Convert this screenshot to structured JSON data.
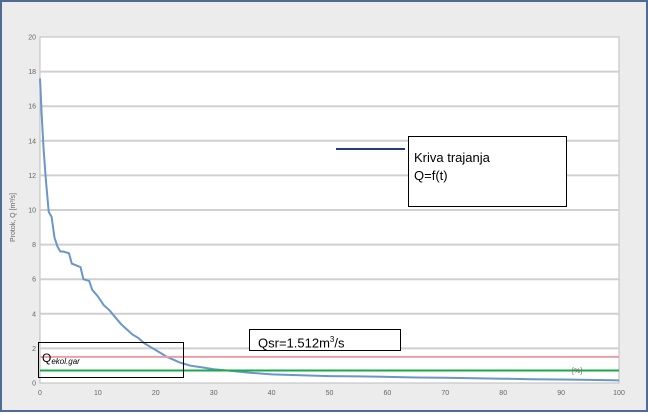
{
  "chart_data": {
    "type": "line",
    "xlabel": "[%]",
    "ylabel": "Protok, Q [m³/s]",
    "xlim": [
      0,
      100
    ],
    "ylim": [
      0,
      20
    ],
    "x_ticks": [
      0,
      10,
      20,
      30,
      40,
      50,
      60,
      70,
      80,
      90,
      100
    ],
    "y_ticks": [
      0,
      2,
      4,
      6,
      8,
      10,
      12,
      14,
      16,
      18,
      20
    ],
    "grid": true,
    "legend": {
      "line1": "Kriva trajanja",
      "line2": "Q=f(t)",
      "color": "#1f3f7a"
    },
    "series": [
      {
        "name": "Kriva trajanja",
        "color": "#6a96c8",
        "x": [
          0,
          0.3,
          0.6,
          1,
          1.5,
          2,
          2.5,
          3,
          3.5,
          4,
          5,
          5.5,
          7,
          7.5,
          8.5,
          9,
          10,
          11,
          12,
          13,
          14,
          15,
          16,
          17,
          18,
          19,
          20,
          21,
          22,
          23,
          24,
          25,
          26,
          28,
          30,
          33,
          36,
          40,
          45,
          50,
          55,
          60,
          65,
          70,
          75,
          80,
          85,
          90,
          95,
          100
        ],
        "values": [
          17.6,
          15.5,
          13.6,
          11.8,
          9.9,
          9.6,
          8.4,
          7.9,
          7.6,
          7.6,
          7.5,
          6.9,
          6.7,
          6.0,
          5.9,
          5.4,
          5.0,
          4.5,
          4.2,
          3.8,
          3.4,
          3.1,
          2.8,
          2.6,
          2.3,
          2.1,
          1.9,
          1.7,
          1.5,
          1.35,
          1.2,
          1.1,
          1.0,
          0.9,
          0.8,
          0.7,
          0.6,
          0.5,
          0.45,
          0.4,
          0.38,
          0.35,
          0.32,
          0.3,
          0.28,
          0.25,
          0.22,
          0.2,
          0.18,
          0.15
        ]
      },
      {
        "name": "Qsr",
        "color": "#e8a0a8",
        "y": 1.512
      },
      {
        "name": "Qekol.gar",
        "color": "#1ba84a",
        "y": 0.72
      }
    ],
    "annotations": {
      "qsr": {
        "text": "Qsr=1.512m",
        "sup": "3",
        "tail": "/s"
      },
      "qekol": {
        "main": "Q",
        "sub": "ekol.gar"
      }
    }
  }
}
